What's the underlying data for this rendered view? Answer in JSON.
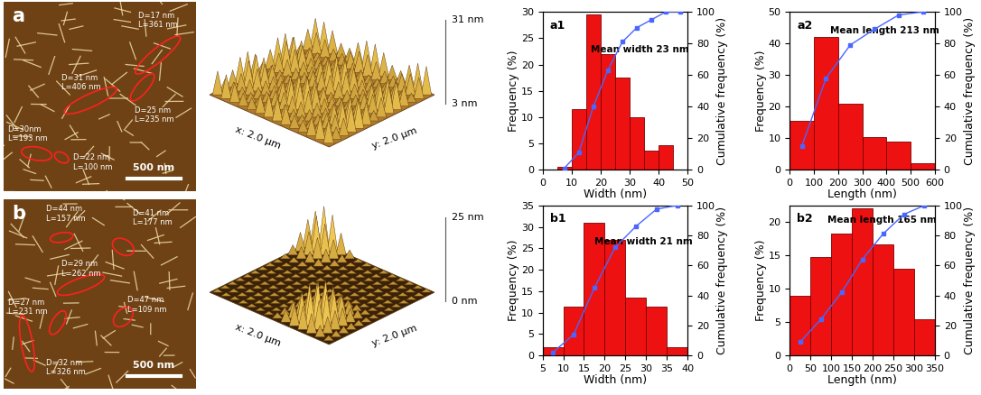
{
  "images": [
    {
      "label": "a",
      "scale_bar": "500 nm",
      "annotations": [
        {
          "D": "D=17 nm",
          "L": "L=361 nm"
        },
        {
          "D": "D=31 nm",
          "L": "L=406 nm"
        },
        {
          "D": "D=25 nm",
          "L": "L=235 nm"
        },
        {
          "D": "D=30nm",
          "L": "L=193 nm"
        },
        {
          "D": "D=22 nm",
          "L": "L=100 nm"
        }
      ]
    },
    {
      "label": "b",
      "scale_bar": "500 nm",
      "annotations": [
        {
          "D": "D=44 nm",
          "L": "L=157 nm"
        },
        {
          "D": "D=41 nm",
          "L": "L=177 nm"
        },
        {
          "D": "D=29 nm",
          "L": "L=262 nm"
        },
        {
          "D": "D=27 nm",
          "L": "L=231 nm"
        },
        {
          "D": "D=47 nm",
          "L": "L=109 nm"
        },
        {
          "D": "D=32 nm",
          "L": "L=326 nm"
        }
      ]
    }
  ],
  "surfaces": [
    {
      "x_label": "x: 2.0 µm",
      "y_label": "y: 2.0 µm",
      "z_top": "31 nm",
      "z_bottom": "3 nm"
    },
    {
      "x_label": "x: 2.0 µm",
      "y_label": "y: 2.0 µm",
      "z_top": "25 nm",
      "z_bottom": "0 nm"
    }
  ],
  "chart_data": [
    {
      "type": "histogram",
      "panel": "a1",
      "annotation": "Mean width 23 nm",
      "x_label": "Width (nm)",
      "y_label": "Frequency (%)",
      "y2_label": "Cumulative frequency (%)",
      "bins": [
        5,
        10,
        15,
        20,
        25,
        30,
        35,
        40,
        45
      ],
      "counts": [
        0.5,
        11.5,
        29.5,
        22,
        17.5,
        10,
        3.7,
        4.7
      ],
      "color": "#ee1111",
      "cumulative": {
        "x": [
          7.5,
          12.5,
          17.5,
          22.5,
          27.5,
          32.5,
          37.5,
          42.5,
          47.5
        ],
        "values": [
          1,
          11,
          40,
          63,
          81,
          90,
          95,
          100,
          100
        ],
        "color": "#4a66ff",
        "marker": "square",
        "axis": "y2"
      },
      "xlim": [
        0,
        50
      ],
      "xticks": [
        0,
        10,
        20,
        30,
        40,
        50
      ],
      "ylim": [
        0,
        30
      ],
      "yticks": [
        0,
        5,
        10,
        15,
        20,
        25,
        30
      ],
      "y2lim": [
        0,
        100
      ],
      "y2ticks": [
        0,
        20,
        40,
        60,
        80,
        100
      ]
    },
    {
      "type": "histogram",
      "panel": "a2",
      "annotation": "Mean length 213 nm",
      "x_label": "Length (nm)",
      "y_label": "Frequency (%)",
      "y2_label": "Cumulative frequency (%)",
      "bins": [
        0,
        100,
        200,
        300,
        400,
        500,
        600
      ],
      "counts": [
        15.5,
        42,
        21,
        10.5,
        9,
        2
      ],
      "color": "#ee1111",
      "cumulative": {
        "x": [
          50,
          150,
          250,
          350,
          450,
          550
        ],
        "values": [
          15,
          58,
          79,
          89,
          98,
          100
        ],
        "color": "#4a66ff",
        "marker": "square",
        "axis": "y2"
      },
      "xlim": [
        0,
        600
      ],
      "xticks": [
        0,
        100,
        200,
        300,
        400,
        500,
        600
      ],
      "ylim": [
        0,
        50
      ],
      "yticks": [
        0,
        10,
        20,
        30,
        40,
        50
      ],
      "y2lim": [
        0,
        100
      ],
      "y2ticks": [
        0,
        20,
        40,
        60,
        80,
        100
      ]
    },
    {
      "type": "histogram",
      "panel": "b1",
      "annotation": "Mean width 21 nm",
      "x_label": "Width (nm)",
      "y_label": "Frequency (%)",
      "y2_label": "Cumulative frequency (%)",
      "bins": [
        5,
        10,
        15,
        20,
        25,
        30,
        35,
        40
      ],
      "counts": [
        2,
        11.5,
        31,
        27,
        13.5,
        11.5,
        2
      ],
      "color": "#ee1111",
      "cumulative": {
        "x": [
          7.5,
          12.5,
          17.5,
          22.5,
          27.5,
          32.5,
          37.5
        ],
        "values": [
          2,
          14,
          45,
          72,
          86,
          97.5,
          100
        ],
        "color": "#4a66ff",
        "marker": "square",
        "axis": "y2"
      },
      "xlim": [
        5,
        40
      ],
      "xticks": [
        5,
        10,
        15,
        20,
        25,
        30,
        35,
        40
      ],
      "ylim": [
        0,
        35
      ],
      "yticks": [
        0,
        5,
        10,
        15,
        20,
        25,
        30,
        35
      ],
      "y2lim": [
        0,
        100
      ],
      "y2ticks": [
        0,
        20,
        40,
        60,
        80,
        100
      ]
    },
    {
      "type": "histogram",
      "panel": "b2",
      "annotation": "Mean length 165 nm",
      "x_label": "Length (nm)",
      "y_label": "Frequency (%)",
      "y2_label": "Cumulative frequency (%)",
      "bins": [
        0,
        50,
        100,
        150,
        200,
        250,
        300,
        350
      ],
      "counts": [
        9,
        14.7,
        18.3,
        22,
        16.6,
        13,
        5.5
      ],
      "color": "#ee1111",
      "cumulative": {
        "x": [
          25,
          75,
          125,
          175,
          225,
          275,
          325
        ],
        "values": [
          9,
          24,
          42,
          64,
          81,
          94,
          100
        ],
        "color": "#4a66ff",
        "marker": "square",
        "axis": "y2"
      },
      "xlim": [
        0,
        350
      ],
      "xticks": [
        0,
        50,
        100,
        150,
        200,
        250,
        300,
        350
      ],
      "ylim": [
        0,
        22.5
      ],
      "yticks": [
        0,
        5,
        10,
        15,
        20
      ],
      "y2lim": [
        0,
        100
      ],
      "y2ticks": [
        0,
        20,
        40,
        60,
        80,
        100
      ]
    }
  ]
}
